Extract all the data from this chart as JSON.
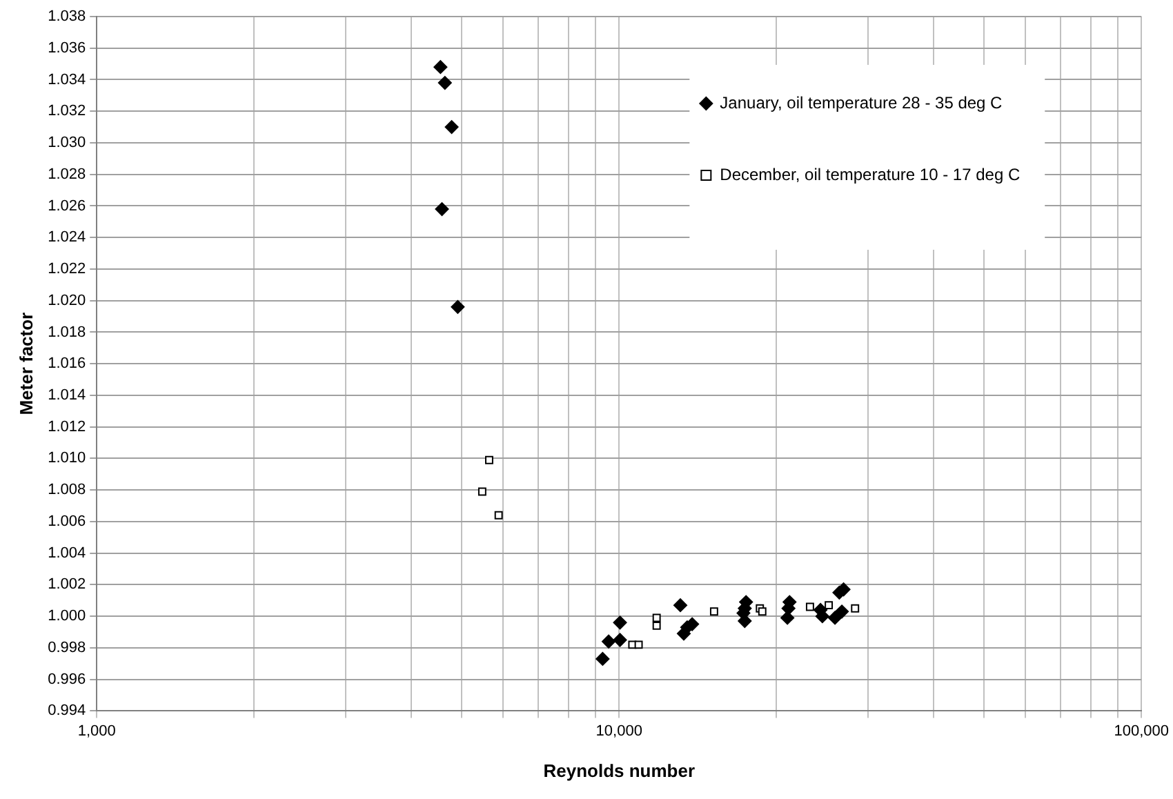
{
  "chart_data": {
    "type": "scatter",
    "xlabel": "Reynolds number",
    "ylabel": "Meter factor",
    "log": "x",
    "grid": true,
    "legend": "top right",
    "xlim": [
      1000,
      100000
    ],
    "xticks": [
      {
        "value": 1000,
        "label": "1,000"
      },
      {
        "value": 2000,
        "label": null
      },
      {
        "value": 3000,
        "label": null
      },
      {
        "value": 4000,
        "label": null
      },
      {
        "value": 5000,
        "label": null
      },
      {
        "value": 6000,
        "label": null
      },
      {
        "value": 7000,
        "label": null
      },
      {
        "value": 8000,
        "label": null
      },
      {
        "value": 9000,
        "label": null
      },
      {
        "value": 10000,
        "label": "10,000"
      },
      {
        "value": 20000,
        "label": null
      },
      {
        "value": 30000,
        "label": null
      },
      {
        "value": 40000,
        "label": null
      },
      {
        "value": 50000,
        "label": null
      },
      {
        "value": 60000,
        "label": null
      },
      {
        "value": 70000,
        "label": null
      },
      {
        "value": 80000,
        "label": null
      },
      {
        "value": 90000,
        "label": null
      },
      {
        "value": 100000,
        "label": "100,000"
      }
    ],
    "ylim": [
      0.994,
      1.038
    ],
    "yticks": [
      {
        "value": 0.994,
        "label": "0.994"
      },
      {
        "value": 0.996,
        "label": "0.996"
      },
      {
        "value": 0.998,
        "label": "0.998"
      },
      {
        "value": 1.0,
        "label": "1.000"
      },
      {
        "value": 1.002,
        "label": "1.002"
      },
      {
        "value": 1.004,
        "label": "1.004"
      },
      {
        "value": 1.006,
        "label": "1.006"
      },
      {
        "value": 1.008,
        "label": "1.008"
      },
      {
        "value": 1.01,
        "label": "1.010"
      },
      {
        "value": 1.012,
        "label": "1.012"
      },
      {
        "value": 1.014,
        "label": "1.014"
      },
      {
        "value": 1.016,
        "label": "1.016"
      },
      {
        "value": 1.018,
        "label": "1.018"
      },
      {
        "value": 1.02,
        "label": "1.020"
      },
      {
        "value": 1.022,
        "label": "1.022"
      },
      {
        "value": 1.024,
        "label": "1.024"
      },
      {
        "value": 1.026,
        "label": "1.026"
      },
      {
        "value": 1.028,
        "label": "1.028"
      },
      {
        "value": 1.03,
        "label": "1.030"
      },
      {
        "value": 1.032,
        "label": "1.032"
      },
      {
        "value": 1.034,
        "label": "1.034"
      },
      {
        "value": 1.036,
        "label": "1.036"
      },
      {
        "value": 1.038,
        "label": "1.038"
      }
    ],
    "series": [
      {
        "name": "January, oil temperature 28 - 35 deg C",
        "color": "#000000",
        "marker": "diamond",
        "x": [
          4550,
          4640,
          4780,
          4580,
          4910,
          9300,
          9550,
          10040,
          10040,
          13100,
          13300,
          13500,
          13800,
          17500,
          17400,
          17300,
          17400,
          21200,
          21100,
          21000,
          24300,
          24500,
          25900,
          26700,
          26400,
          26900
        ],
        "values": [
          1.0348,
          1.0338,
          1.031,
          1.0258,
          1.0196,
          0.9973,
          0.9984,
          0.9996,
          0.9985,
          1.0007,
          0.9989,
          0.9993,
          0.9995,
          1.0009,
          1.0005,
          1.0002,
          0.9997,
          1.0009,
          1.0005,
          0.9999,
          1.0004,
          1.0,
          0.9999,
          1.0003,
          1.0015,
          1.0017
        ]
      },
      {
        "name": "December, oil temperature 10 - 17 deg C",
        "color": "#000000",
        "marker": "square",
        "x": [
          5640,
          5470,
          5880,
          10600,
          10900,
          11800,
          11800,
          15200,
          18600,
          18800,
          23200,
          25200,
          28300
        ],
        "values": [
          1.0099,
          1.0079,
          1.0064,
          0.9982,
          0.9982,
          0.9999,
          0.9994,
          1.0003,
          1.0005,
          1.0003,
          1.0006,
          1.0007,
          1.0005
        ]
      }
    ]
  }
}
